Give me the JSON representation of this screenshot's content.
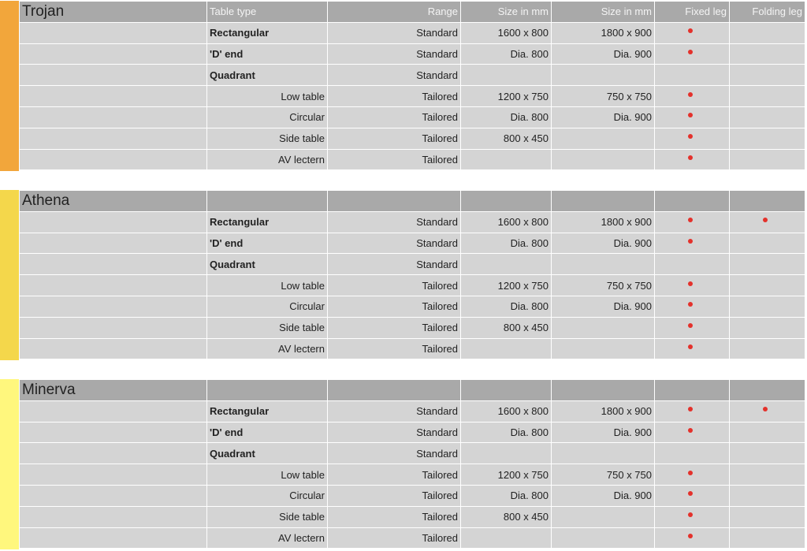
{
  "headers": {
    "table_type": "Table type",
    "range": "Range",
    "size1": "Size in mm",
    "size2": "Size in mm",
    "fixed": "Fixed leg",
    "folding": "Folding leg"
  },
  "colors": {
    "trojan": "#f2a63b",
    "athena": "#f4d74b",
    "minerva": "#fff77d",
    "dot": "#e4312b"
  },
  "sections": [
    {
      "name": "Trojan",
      "rows": [
        {
          "type": "Rectangular",
          "bold": true,
          "range": "Standard",
          "s1": "1600 x 800",
          "s2": "1800 x 900",
          "fixed": true,
          "folding": false
        },
        {
          "type": "'D' end",
          "bold": true,
          "range": "Standard",
          "s1": "Dia. 800",
          "s2": "Dia. 900",
          "fixed": true,
          "folding": false
        },
        {
          "type": "Quadrant",
          "bold": true,
          "range": "Standard",
          "s1": "",
          "s2": "",
          "fixed": false,
          "folding": false
        },
        {
          "type": "Low table",
          "bold": false,
          "range": "Tailored",
          "s1": "1200 x 750",
          "s2": "750 x 750",
          "fixed": true,
          "folding": false
        },
        {
          "type": "Circular",
          "bold": false,
          "range": "Tailored",
          "s1": "Dia. 800",
          "s2": "Dia. 900",
          "fixed": true,
          "folding": false
        },
        {
          "type": "Side table",
          "bold": false,
          "range": "Tailored",
          "s1": "800 x 450",
          "s2": "",
          "fixed": true,
          "folding": false
        },
        {
          "type": "AV lectern",
          "bold": false,
          "range": "Tailored",
          "s1": "",
          "s2": "",
          "fixed": true,
          "folding": false
        }
      ]
    },
    {
      "name": "Athena",
      "rows": [
        {
          "type": "Rectangular",
          "bold": true,
          "range": "Standard",
          "s1": "1600 x 800",
          "s2": "1800 x 900",
          "fixed": true,
          "folding": true
        },
        {
          "type": "'D' end",
          "bold": true,
          "range": "Standard",
          "s1": "Dia. 800",
          "s2": "Dia. 900",
          "fixed": true,
          "folding": false
        },
        {
          "type": "Quadrant",
          "bold": true,
          "range": "Standard",
          "s1": "",
          "s2": "",
          "fixed": false,
          "folding": false
        },
        {
          "type": "Low table",
          "bold": false,
          "range": "Tailored",
          "s1": "1200 x 750",
          "s2": "750 x 750",
          "fixed": true,
          "folding": false
        },
        {
          "type": "Circular",
          "bold": false,
          "range": "Tailored",
          "s1": "Dia. 800",
          "s2": "Dia. 900",
          "fixed": true,
          "folding": false
        },
        {
          "type": "Side table",
          "bold": false,
          "range": "Tailored",
          "s1": "800 x 450",
          "s2": "",
          "fixed": true,
          "folding": false
        },
        {
          "type": "AV lectern",
          "bold": false,
          "range": "Tailored",
          "s1": "",
          "s2": "",
          "fixed": true,
          "folding": false
        }
      ]
    },
    {
      "name": "Minerva",
      "rows": [
        {
          "type": "Rectangular",
          "bold": true,
          "range": "Standard",
          "s1": "1600 x 800",
          "s2": "1800 x 900",
          "fixed": true,
          "folding": true
        },
        {
          "type": "'D' end",
          "bold": true,
          "range": "Standard",
          "s1": "Dia. 800",
          "s2": "Dia. 900",
          "fixed": true,
          "folding": false
        },
        {
          "type": "Quadrant",
          "bold": true,
          "range": "Standard",
          "s1": "",
          "s2": "",
          "fixed": false,
          "folding": false
        },
        {
          "type": "Low table",
          "bold": false,
          "range": "Tailored",
          "s1": "1200 x 750",
          "s2": "750 x 750",
          "fixed": true,
          "folding": false
        },
        {
          "type": "Circular",
          "bold": false,
          "range": "Tailored",
          "s1": "Dia. 800",
          "s2": "Dia. 900",
          "fixed": true,
          "folding": false
        },
        {
          "type": "Side table",
          "bold": false,
          "range": "Tailored",
          "s1": "800 x 450",
          "s2": "",
          "fixed": true,
          "folding": false
        },
        {
          "type": "AV lectern",
          "bold": false,
          "range": "Tailored",
          "s1": "",
          "s2": "",
          "fixed": true,
          "folding": false
        }
      ]
    }
  ]
}
